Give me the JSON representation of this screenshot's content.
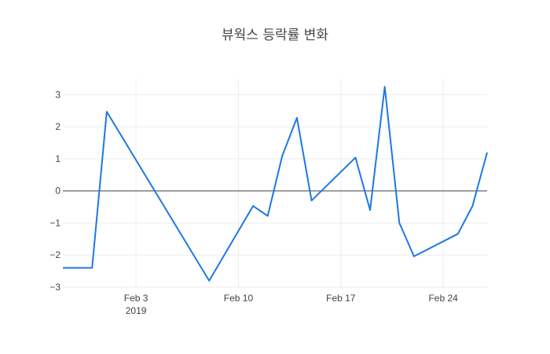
{
  "chart_data": {
    "type": "line",
    "title": "뷰웍스 등락률 변화",
    "xlabel": "",
    "ylabel": "",
    "xlim": [
      "2019-01-29",
      "2019-02-27"
    ],
    "ylim": [
      -3,
      3.5
    ],
    "y_ticks": [
      {
        "value": 3,
        "label": "3"
      },
      {
        "value": 2,
        "label": "2"
      },
      {
        "value": 1,
        "label": "1"
      },
      {
        "value": 0,
        "label": "0"
      },
      {
        "value": -1,
        "label": "−1"
      },
      {
        "value": -2,
        "label": "−2"
      },
      {
        "value": -3,
        "label": "−3"
      }
    ],
    "x_ticks": [
      {
        "value": "2019-02-03",
        "label": "Feb 3",
        "sublabel": "2019"
      },
      {
        "value": "2019-02-10",
        "label": "Feb 10",
        "sublabel": ""
      },
      {
        "value": "2019-02-17",
        "label": "Feb 17",
        "sublabel": ""
      },
      {
        "value": "2019-02-24",
        "label": "Feb 24",
        "sublabel": ""
      }
    ],
    "grid": true,
    "zero_line": true,
    "series": [
      {
        "color": "#1f77e4",
        "points": [
          {
            "x": "2019-01-29",
            "y": -2.4
          },
          {
            "x": "2019-01-31",
            "y": -2.4
          },
          {
            "x": "2019-02-01",
            "y": 2.47
          },
          {
            "x": "2019-02-08",
            "y": -2.8
          },
          {
            "x": "2019-02-11",
            "y": -0.47
          },
          {
            "x": "2019-02-12",
            "y": -0.78
          },
          {
            "x": "2019-02-13",
            "y": 1.1
          },
          {
            "x": "2019-02-14",
            "y": 2.28
          },
          {
            "x": "2019-02-15",
            "y": -0.3
          },
          {
            "x": "2019-02-18",
            "y": 1.04
          },
          {
            "x": "2019-02-19",
            "y": -0.6
          },
          {
            "x": "2019-02-20",
            "y": 3.25
          },
          {
            "x": "2019-02-21",
            "y": -1.0
          },
          {
            "x": "2019-02-22",
            "y": -2.04
          },
          {
            "x": "2019-02-25",
            "y": -1.34
          },
          {
            "x": "2019-02-26",
            "y": -0.47
          },
          {
            "x": "2019-02-27",
            "y": 1.2
          }
        ]
      }
    ]
  }
}
